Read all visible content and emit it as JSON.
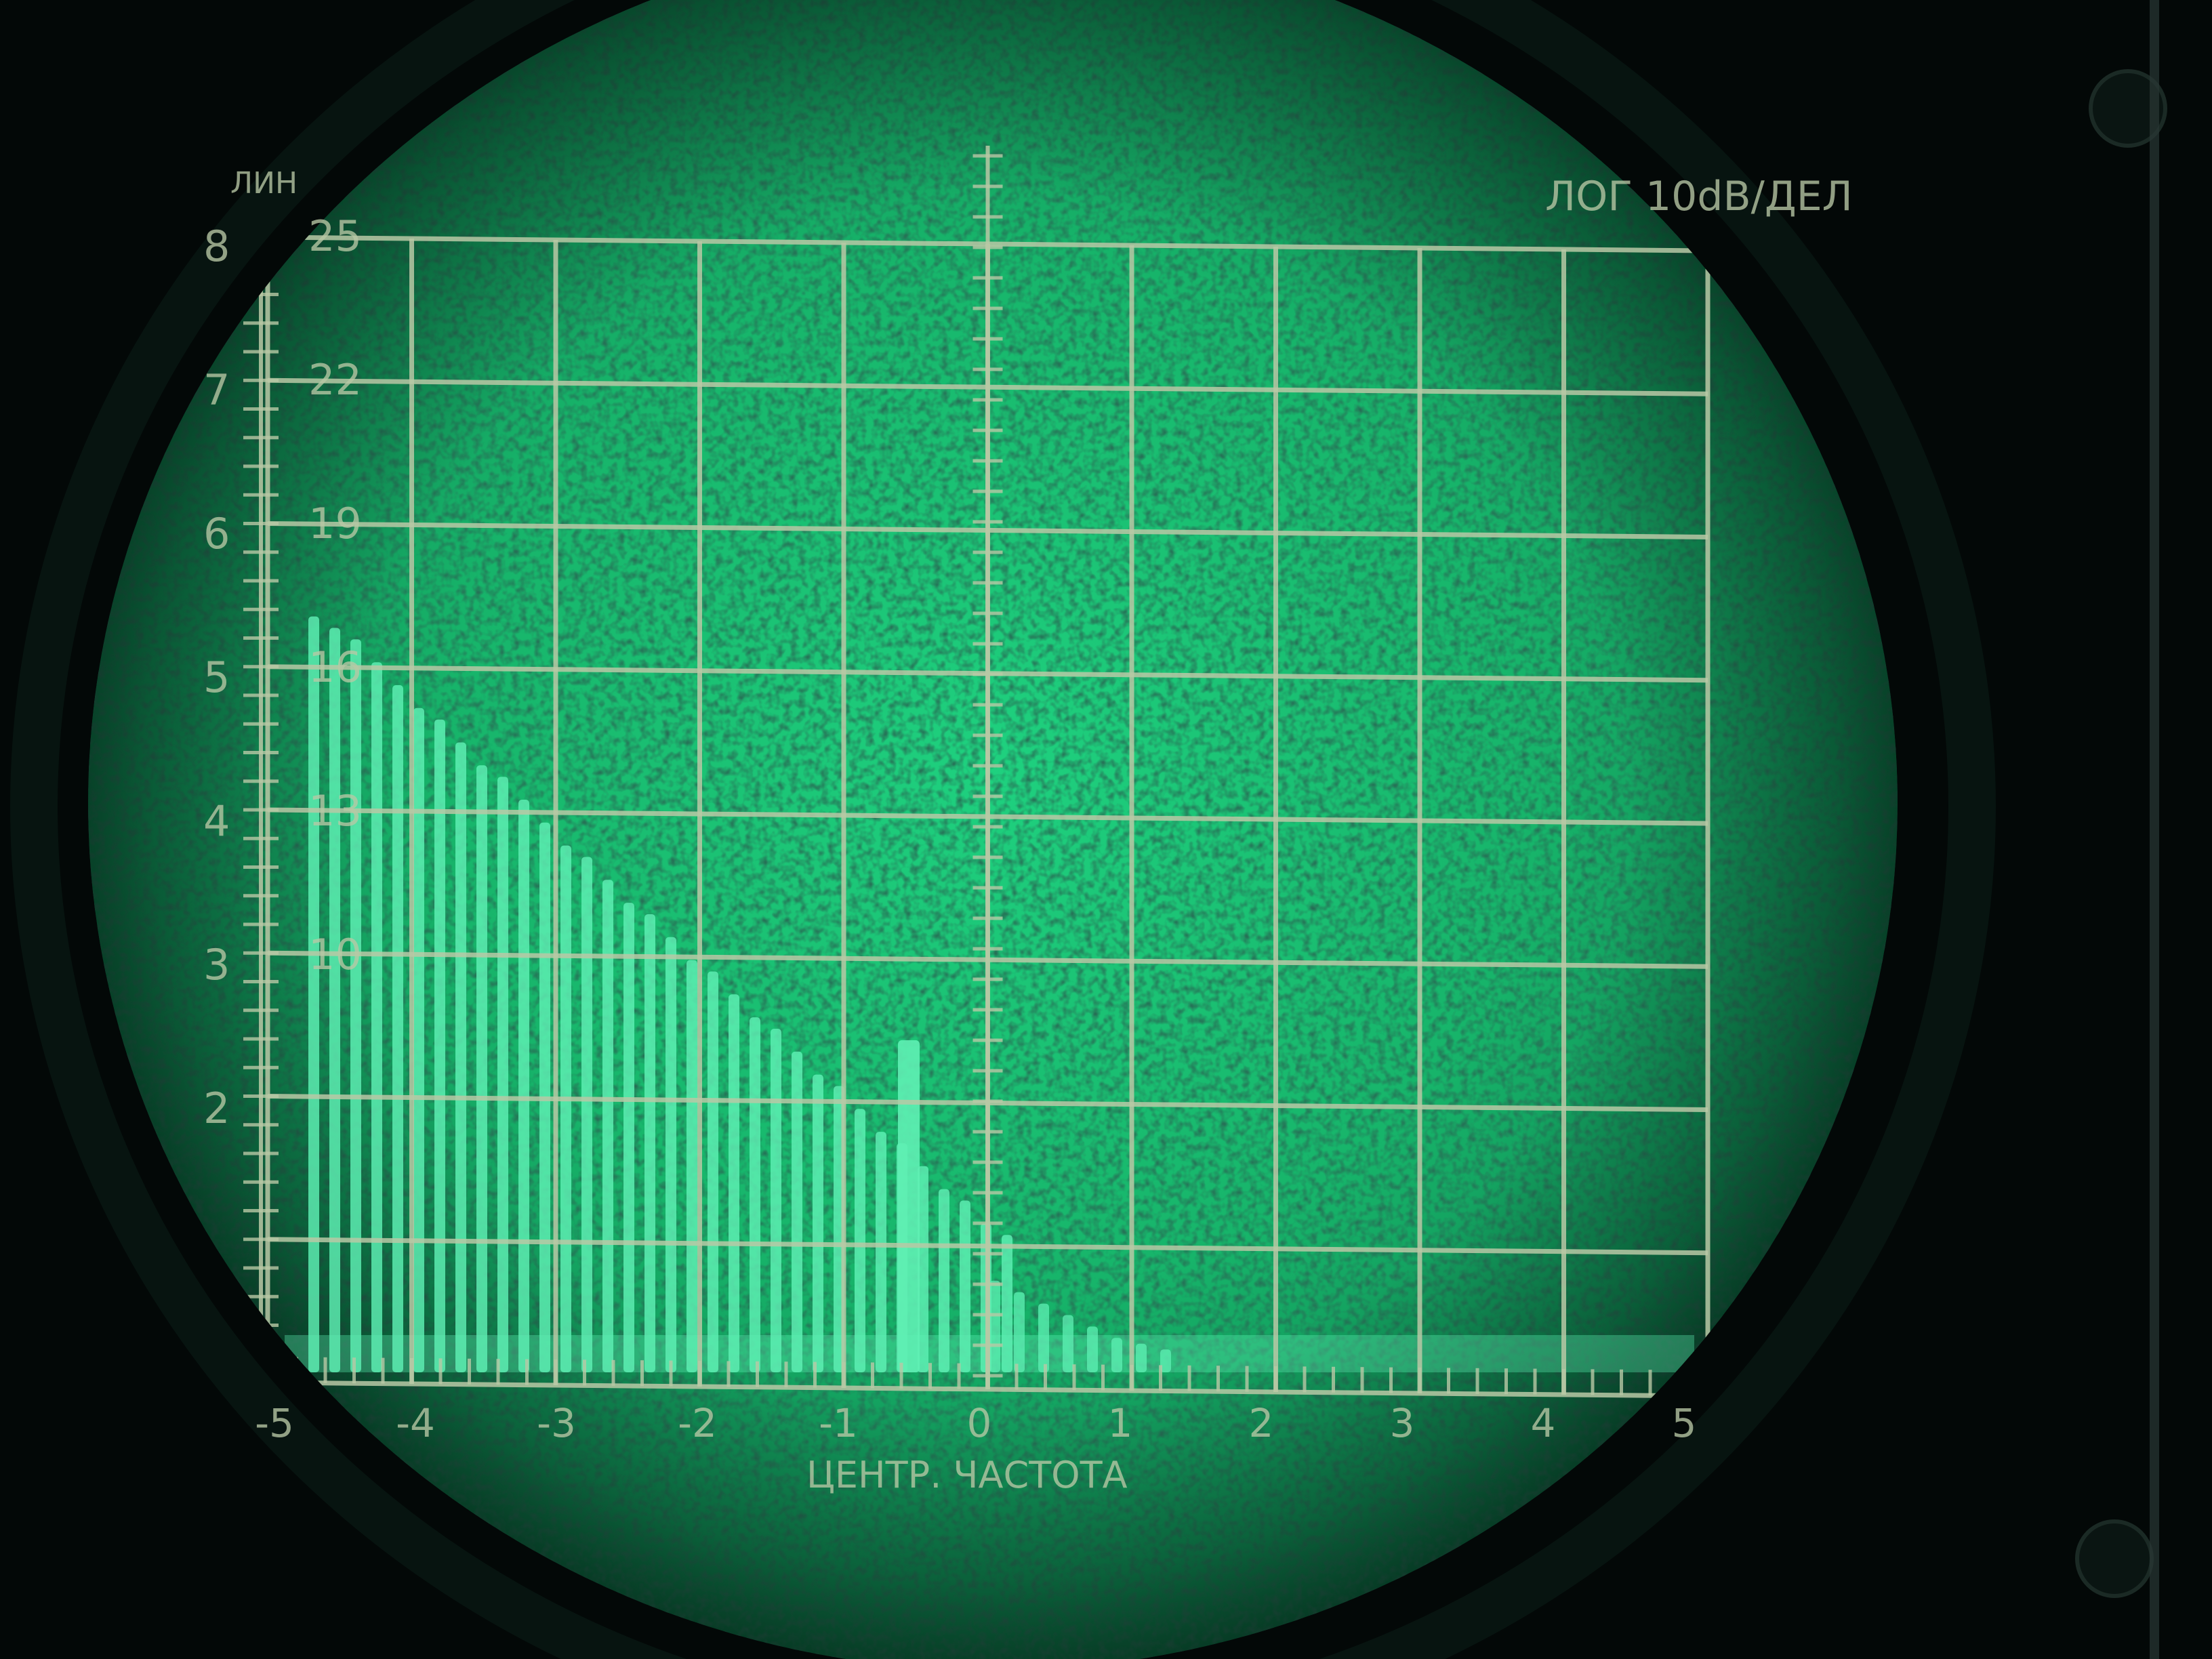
{
  "screen_labels": {
    "lin": "ЛИН",
    "log": "ЛОГ 10dB/ДЕЛ",
    "center_frequency": "ЦЕНТР. ЧАСТОТА"
  },
  "lin_scale": [
    "8",
    "7",
    "6",
    "5",
    "4",
    "3",
    "2"
  ],
  "log_scale": [
    "25",
    "22",
    "19",
    "16",
    "13",
    "10"
  ],
  "freq_scale": [
    "-5",
    "-4",
    "-3",
    "-2",
    "-1",
    "0",
    "1",
    "2",
    "3",
    "4",
    "5"
  ],
  "spectrum": {
    "left_group": [
      0.66,
      0.65,
      0.64,
      0.62,
      0.6,
      0.58,
      0.57,
      0.55,
      0.53,
      0.52,
      0.5,
      0.48,
      0.46,
      0.45,
      0.43,
      0.41,
      0.4,
      0.38,
      0.36,
      0.35,
      0.33,
      0.31,
      0.3,
      0.28,
      0.26,
      0.25,
      0.23,
      0.21,
      0.2,
      0.18,
      0.16,
      0.15,
      0.13,
      0.12
    ],
    "center_peak": 0.29,
    "right_group": [
      0.08,
      0.07,
      0.06,
      0.05,
      0.04,
      0.03,
      0.025,
      0.02
    ]
  },
  "colors": {
    "phosphor": "#22c47c",
    "phosphor_bright": "#5ff0b4",
    "graticule": "#b9c9a6",
    "bezel": "#030807"
  }
}
